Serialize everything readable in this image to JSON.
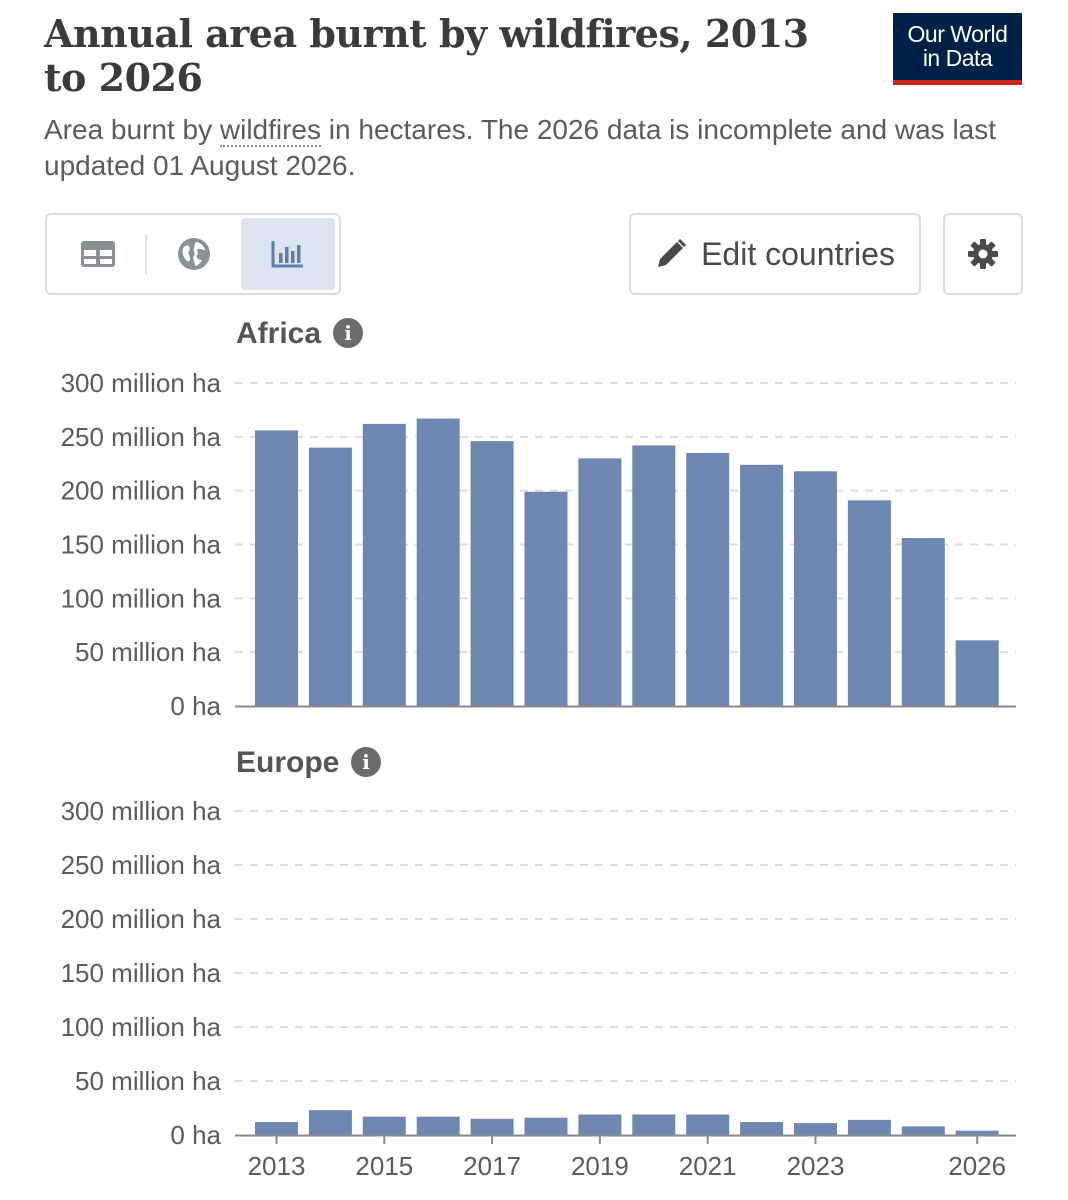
{
  "header": {
    "title": "Annual area burnt by wildfires, 2013 to 2026",
    "subtitle_prefix": "Area burnt by ",
    "subtitle_link": "wildfires",
    "subtitle_suffix": " in hectares. The 2026 data is incomplete and was last updated 01 August 2026."
  },
  "logo": {
    "line1": "Our World",
    "line2": "in Data",
    "bg_color": "#002147",
    "accent_color": "#ce261e"
  },
  "toolbar": {
    "table_icon": "table-icon",
    "map_icon": "globe-icon",
    "chart_icon": "bar-chart-icon",
    "active_view": "chart",
    "edit_label": "Edit countries",
    "edit_icon": "pencil-icon",
    "settings_icon": "gear-icon"
  },
  "chart_data": [
    {
      "type": "bar",
      "title": "Africa",
      "categories": [
        "2013",
        "2014",
        "2015",
        "2016",
        "2017",
        "2018",
        "2019",
        "2020",
        "2021",
        "2022",
        "2023",
        "2024",
        "2025",
        "2026"
      ],
      "values": [
        256,
        240,
        262,
        267,
        246,
        199,
        230,
        242,
        235,
        224,
        218,
        191,
        156,
        61
      ],
      "unit": "million ha",
      "ylim": [
        0,
        300
      ],
      "y_ticks": [
        "0 ha",
        "50 million ha",
        "100 million ha",
        "150 million ha",
        "200 million ha",
        "250 million ha",
        "300 million ha"
      ],
      "x_tick_labels": [],
      "grid": true,
      "bar_color": "#6d87b0"
    },
    {
      "type": "bar",
      "title": "Europe",
      "categories": [
        "2013",
        "2014",
        "2015",
        "2016",
        "2017",
        "2018",
        "2019",
        "2020",
        "2021",
        "2022",
        "2023",
        "2024",
        "2025",
        "2026"
      ],
      "values": [
        12,
        23,
        17,
        17,
        15,
        16,
        19,
        19,
        19,
        12,
        11,
        14,
        8,
        4
      ],
      "unit": "million ha",
      "ylim": [
        0,
        300
      ],
      "y_ticks": [
        "0 ha",
        "50 million ha",
        "100 million ha",
        "150 million ha",
        "200 million ha",
        "250 million ha",
        "300 million ha"
      ],
      "x_tick_labels": [
        "2013",
        "2015",
        "2017",
        "2019",
        "2021",
        "2023",
        "2026"
      ],
      "grid": true,
      "bar_color": "#6d87b0"
    }
  ]
}
